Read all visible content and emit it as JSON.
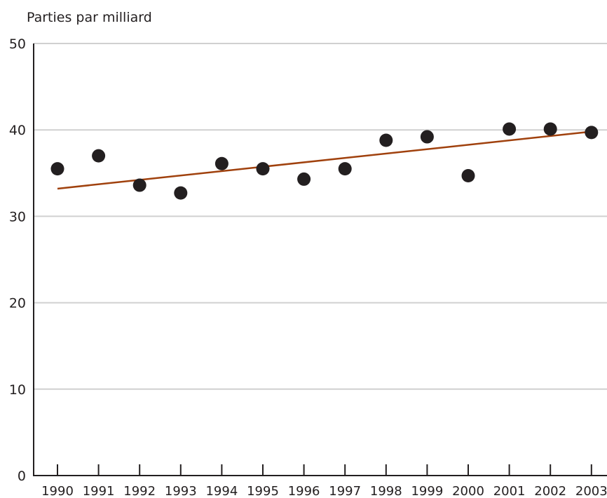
{
  "chart_data": {
    "type": "scatter",
    "title": "",
    "ylabel": "Parties par milliard",
    "xlabel": "",
    "x": [
      "1990",
      "1991",
      "1992",
      "1993",
      "1994",
      "1995",
      "1996",
      "1997",
      "1998",
      "1999",
      "2000",
      "2001",
      "2002",
      "2003"
    ],
    "y_ticks": [
      "0",
      "10",
      "20",
      "30",
      "40",
      "50"
    ],
    "ylim": [
      0,
      50
    ],
    "grid": true,
    "series": [
      {
        "values": [
          35.5,
          37.0,
          33.6,
          32.7,
          36.1,
          35.5,
          34.3,
          35.5,
          38.8,
          39.2,
          34.7,
          40.1,
          40.1,
          39.7
        ],
        "marker_color": "#231f20"
      }
    ],
    "trendline": {
      "start": [
        1990,
        33.2
      ],
      "end": [
        2003,
        39.8
      ],
      "color": "#a0410d"
    }
  }
}
